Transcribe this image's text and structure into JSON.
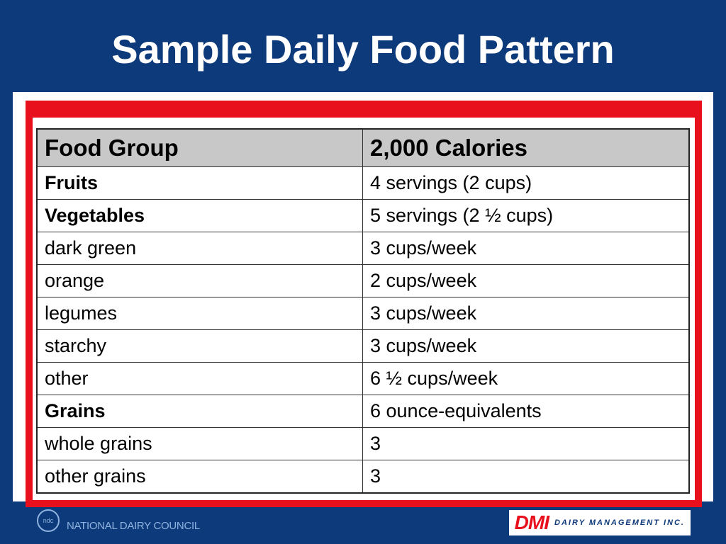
{
  "slide": {
    "title": "Sample Daily Food Pattern"
  },
  "table": {
    "headers": [
      "Food Group",
      "2,000 Calories"
    ],
    "rows": [
      {
        "group": "Fruits",
        "amount": "4 servings (2 cups)",
        "level": 1
      },
      {
        "group": "Vegetables",
        "amount": "5 servings (2 ½ cups)",
        "level": 1
      },
      {
        "group": "dark green",
        "amount": "3 cups/week",
        "level": 2
      },
      {
        "group": "orange",
        "amount": "2 cups/week",
        "level": 2
      },
      {
        "group": "legumes",
        "amount": "3 cups/week",
        "level": 2
      },
      {
        "group": "starchy",
        "amount": "3 cups/week",
        "level": 2
      },
      {
        "group": "other",
        "amount": "6 ½ cups/week",
        "level": 2
      },
      {
        "group": "Grains",
        "amount": "6 ounce-equivalents",
        "level": 1
      },
      {
        "group": "whole grains",
        "amount": "3",
        "level": 2
      },
      {
        "group": "other grains",
        "amount": "3",
        "level": 2
      }
    ]
  },
  "footer": {
    "left_logo_mark": "ndc",
    "left_text": "NATIONAL DAIRY COUNCIL",
    "right_logo_mark": "DMI",
    "right_text": "DAIRY MANAGEMENT INC."
  },
  "colors": {
    "background": "#0d3a7a",
    "frame_red": "#e8101c",
    "header_gray": "#c8c8c8"
  }
}
